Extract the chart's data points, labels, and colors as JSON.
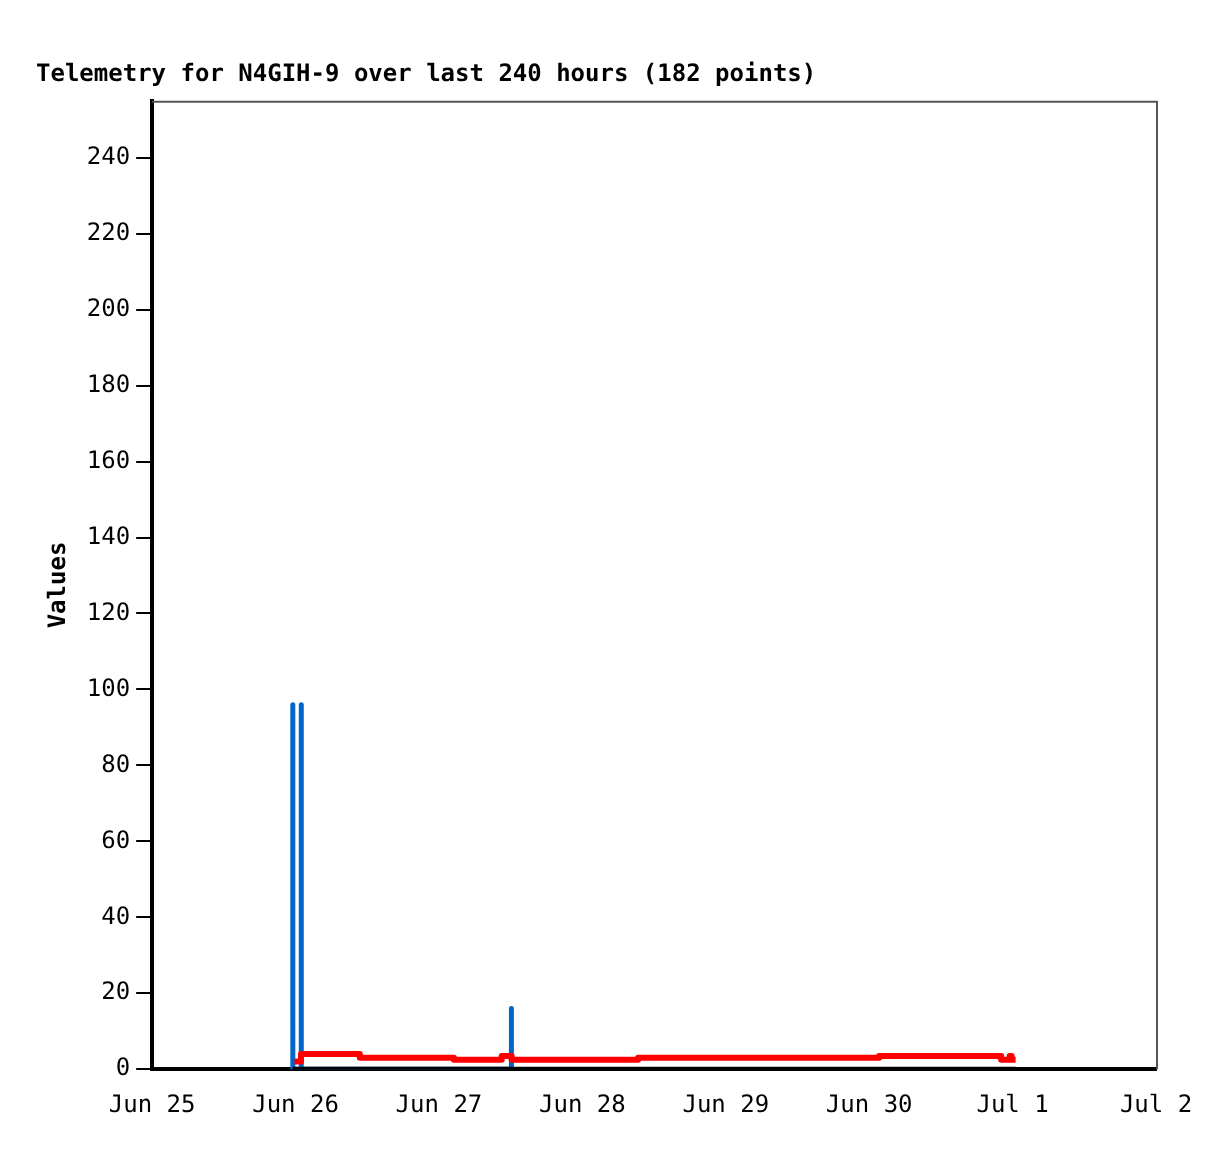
{
  "chart_data": {
    "type": "line",
    "title": "Telemetry for N4GIH-9 over last 240 hours (182 points)",
    "ylabel": "Values",
    "xlim": [
      "--06-25",
      "--07-02"
    ],
    "xticks": [
      {
        "value": "--06-25",
        "label": "Jun 25"
      },
      {
        "value": "--06-26",
        "label": "Jun 26"
      },
      {
        "value": "--06-27",
        "label": "Jun 27"
      },
      {
        "value": "--06-28",
        "label": "Jun 28"
      },
      {
        "value": "--06-29",
        "label": "Jun 29"
      },
      {
        "value": "--06-30",
        "label": "Jun 30"
      },
      {
        "value": "--07-01",
        "label": "Jul 1"
      },
      {
        "value": "--07-02",
        "label": "Jul 2"
      }
    ],
    "ylim": [
      0,
      255
    ],
    "yticks": [
      0,
      20,
      40,
      60,
      80,
      100,
      120,
      140,
      160,
      180,
      200,
      220,
      240
    ],
    "grid": false,
    "legend": false,
    "marker": "none",
    "line_style": "solid",
    "series": [
      {
        "color": "#000000",
        "x": [
          "--06-25T23:30",
          "--07-01T00:30"
        ],
        "values": [
          0,
          0
        ]
      },
      {
        "type": "step",
        "color": "#ff0000",
        "x": [
          "--06-25T23:50",
          "--06-26T00:55",
          "--06-26T10:45",
          "--06-27T02:30",
          "--06-27T10:30",
          "--06-27T12:10",
          "--06-28T09:20",
          "--06-30T01:40",
          "--06-30T22:05",
          "--06-30T23:30",
          "--06-30T23:50",
          "--07-01T00:30"
        ],
        "values": [
          2,
          4,
          3,
          2.5,
          3.5,
          2.5,
          3,
          3.5,
          2.5,
          3.5,
          2.5,
          2.5
        ]
      },
      {
        "color": "#0066cc",
        "x": [
          "--06-25T23:25",
          "--06-25T23:30",
          "--06-25T23:35",
          "--06-26T00:50",
          "--06-26T00:55",
          "--06-26T01:00",
          "--06-27T12:00",
          "--06-27T12:05",
          "--06-27T12:10"
        ],
        "values": [
          0,
          96,
          0,
          0,
          96,
          0,
          0,
          16,
          0
        ]
      }
    ]
  }
}
